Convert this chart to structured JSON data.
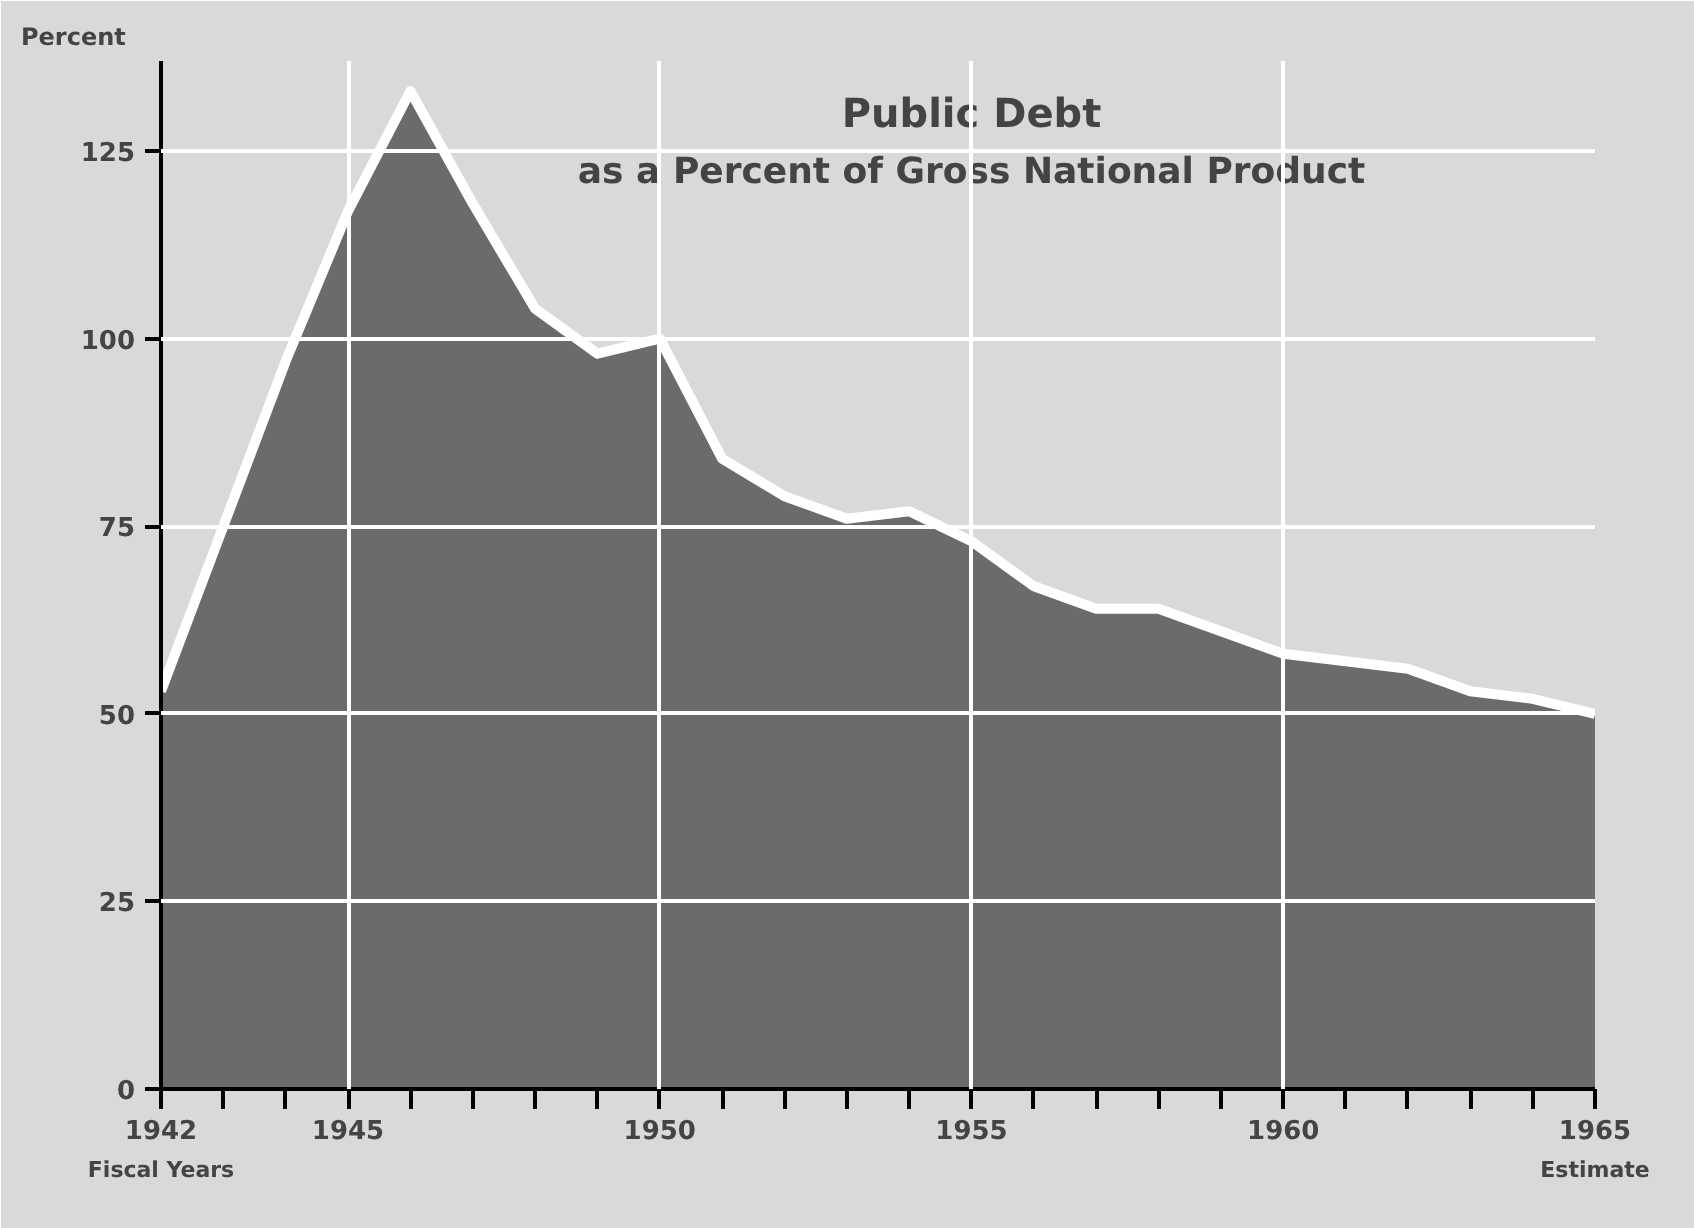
{
  "chart_data": {
    "type": "area",
    "title": "Public Debt",
    "subtitle": "as a Percent of Gross National Product",
    "ylabel": "Percent",
    "x": [
      1942,
      1943,
      1944,
      1945,
      1946,
      1947,
      1948,
      1949,
      1950,
      1951,
      1952,
      1953,
      1954,
      1955,
      1956,
      1957,
      1958,
      1959,
      1960,
      1961,
      1962,
      1963,
      1964,
      1965
    ],
    "series": [
      {
        "color": "#6b6b6b",
        "values": [
          53,
          75,
          97,
          117,
          133,
          118,
          104,
          98,
          100,
          84,
          79,
          76,
          77,
          73,
          67,
          64,
          64,
          61,
          58,
          57,
          56,
          53,
          52,
          50
        ]
      }
    ],
    "xlim": [
      1942,
      1965
    ],
    "ylim": [
      0,
      137
    ],
    "xticks": [
      1942,
      {
        "value": 1943,
        "label": null
      },
      {
        "value": 1944,
        "label": null
      },
      1945,
      {
        "value": 1946,
        "label": null
      },
      {
        "value": 1947,
        "label": null
      },
      {
        "value": 1948,
        "label": null
      },
      {
        "value": 1949,
        "label": null
      },
      1950,
      {
        "value": 1951,
        "label": null
      },
      {
        "value": 1952,
        "label": null
      },
      {
        "value": 1953,
        "label": null
      },
      {
        "value": 1954,
        "label": null
      },
      1955,
      {
        "value": 1956,
        "label": null
      },
      {
        "value": 1957,
        "label": null
      },
      {
        "value": 1958,
        "label": null
      },
      {
        "value": 1959,
        "label": null
      },
      1960,
      {
        "value": 1961,
        "label": null
      },
      {
        "value": 1962,
        "label": null
      },
      {
        "value": 1963,
        "label": null
      },
      {
        "value": 1964,
        "label": null
      },
      1965
    ],
    "yticks": [
      0,
      25,
      50,
      75,
      100,
      125
    ],
    "grid": true,
    "annotations": [
      "Fiscal Years",
      "Estimate"
    ]
  }
}
